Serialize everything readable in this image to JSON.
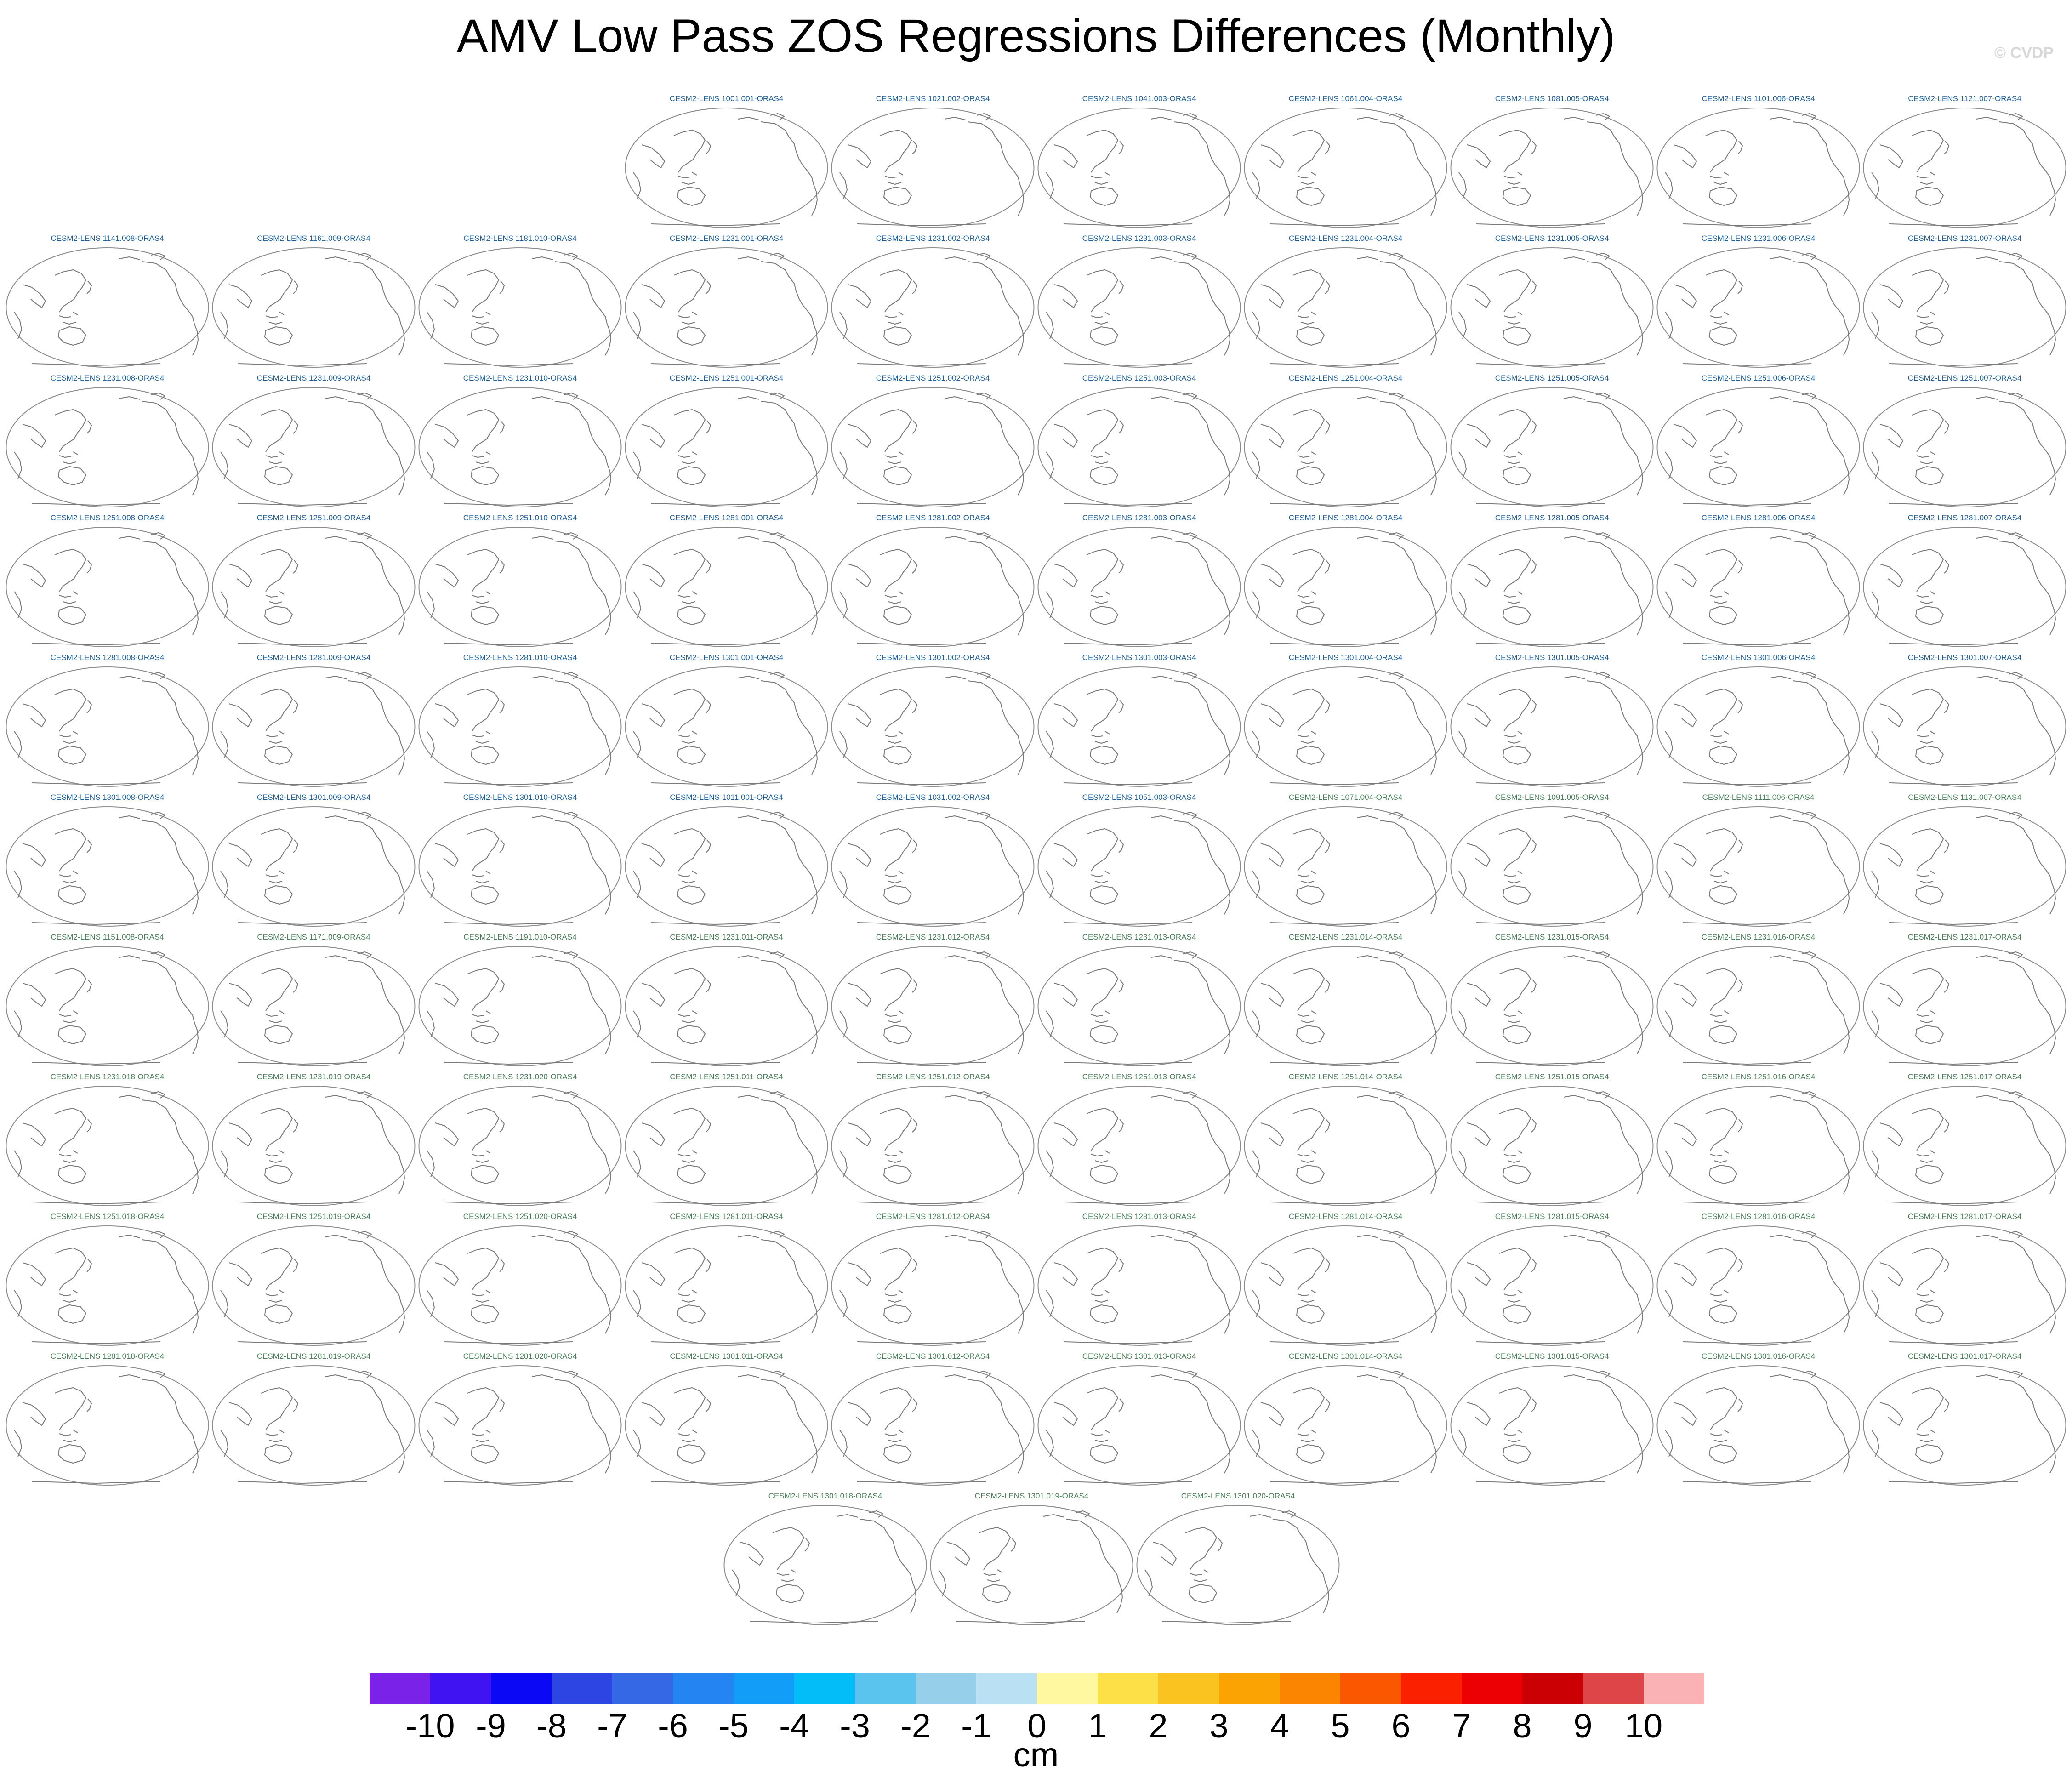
{
  "chart_data": {
    "type": "map_panel_grid",
    "title": "AMV Low Pass ZOS Regressions Differences (Monthly)",
    "watermark": "© CVDP",
    "projection": "Robinson (Pacific-centered)",
    "panel_rows": [
      [
        "CESM2-LENS 1001.001-ORAS4",
        "CESM2-LENS 1021.002-ORAS4",
        "CESM2-LENS 1041.003-ORAS4",
        "CESM2-LENS 1061.004-ORAS4",
        "CESM2-LENS 1081.005-ORAS4",
        "CESM2-LENS 1101.006-ORAS4",
        "CESM2-LENS 1121.007-ORAS4"
      ],
      [
        "CESM2-LENS 1141.008-ORAS4",
        "CESM2-LENS 1161.009-ORAS4",
        "CESM2-LENS 1181.010-ORAS4",
        "CESM2-LENS 1231.001-ORAS4",
        "CESM2-LENS 1231.002-ORAS4",
        "CESM2-LENS 1231.003-ORAS4",
        "CESM2-LENS 1231.004-ORAS4",
        "CESM2-LENS 1231.005-ORAS4",
        "CESM2-LENS 1231.006-ORAS4",
        "CESM2-LENS 1231.007-ORAS4"
      ],
      [
        "CESM2-LENS 1231.008-ORAS4",
        "CESM2-LENS 1231.009-ORAS4",
        "CESM2-LENS 1231.010-ORAS4",
        "CESM2-LENS 1251.001-ORAS4",
        "CESM2-LENS 1251.002-ORAS4",
        "CESM2-LENS 1251.003-ORAS4",
        "CESM2-LENS 1251.004-ORAS4",
        "CESM2-LENS 1251.005-ORAS4",
        "CESM2-LENS 1251.006-ORAS4",
        "CESM2-LENS 1251.007-ORAS4"
      ],
      [
        "CESM2-LENS 1251.008-ORAS4",
        "CESM2-LENS 1251.009-ORAS4",
        "CESM2-LENS 1251.010-ORAS4",
        "CESM2-LENS 1281.001-ORAS4",
        "CESM2-LENS 1281.002-ORAS4",
        "CESM2-LENS 1281.003-ORAS4",
        "CESM2-LENS 1281.004-ORAS4",
        "CESM2-LENS 1281.005-ORAS4",
        "CESM2-LENS 1281.006-ORAS4",
        "CESM2-LENS 1281.007-ORAS4"
      ],
      [
        "CESM2-LENS 1281.008-ORAS4",
        "CESM2-LENS 1281.009-ORAS4",
        "CESM2-LENS 1281.010-ORAS4",
        "CESM2-LENS 1301.001-ORAS4",
        "CESM2-LENS 1301.002-ORAS4",
        "CESM2-LENS 1301.003-ORAS4",
        "CESM2-LENS 1301.004-ORAS4",
        "CESM2-LENS 1301.005-ORAS4",
        "CESM2-LENS 1301.006-ORAS4",
        "CESM2-LENS 1301.007-ORAS4"
      ],
      [
        "CESM2-LENS 1301.008-ORAS4",
        "CESM2-LENS 1301.009-ORAS4",
        "CESM2-LENS 1301.010-ORAS4",
        "CESM2-LENS 1011.001-ORAS4",
        "CESM2-LENS 1031.002-ORAS4",
        "CESM2-LENS 1051.003-ORAS4",
        "CESM2-LENS 1071.004-ORAS4",
        "CESM2-LENS 1091.005-ORAS4",
        "CESM2-LENS 1111.006-ORAS4",
        "CESM2-LENS 1131.007-ORAS4"
      ],
      [
        "CESM2-LENS 1151.008-ORAS4",
        "CESM2-LENS 1171.009-ORAS4",
        "CESM2-LENS 1191.010-ORAS4",
        "CESM2-LENS 1231.011-ORAS4",
        "CESM2-LENS 1231.012-ORAS4",
        "CESM2-LENS 1231.013-ORAS4",
        "CESM2-LENS 1231.014-ORAS4",
        "CESM2-LENS 1231.015-ORAS4",
        "CESM2-LENS 1231.016-ORAS4",
        "CESM2-LENS 1231.017-ORAS4"
      ],
      [
        "CESM2-LENS 1231.018-ORAS4",
        "CESM2-LENS 1231.019-ORAS4",
        "CESM2-LENS 1231.020-ORAS4",
        "CESM2-LENS 1251.011-ORAS4",
        "CESM2-LENS 1251.012-ORAS4",
        "CESM2-LENS 1251.013-ORAS4",
        "CESM2-LENS 1251.014-ORAS4",
        "CESM2-LENS 1251.015-ORAS4",
        "CESM2-LENS 1251.016-ORAS4",
        "CESM2-LENS 1251.017-ORAS4"
      ],
      [
        "CESM2-LENS 1251.018-ORAS4",
        "CESM2-LENS 1251.019-ORAS4",
        "CESM2-LENS 1251.020-ORAS4",
        "CESM2-LENS 1281.011-ORAS4",
        "CESM2-LENS 1281.012-ORAS4",
        "CESM2-LENS 1281.013-ORAS4",
        "CESM2-LENS 1281.014-ORAS4",
        "CESM2-LENS 1281.015-ORAS4",
        "CESM2-LENS 1281.016-ORAS4",
        "CESM2-LENS 1281.017-ORAS4"
      ],
      [
        "CESM2-LENS 1281.018-ORAS4",
        "CESM2-LENS 1281.019-ORAS4",
        "CESM2-LENS 1281.020-ORAS4",
        "CESM2-LENS 1301.011-ORAS4",
        "CESM2-LENS 1301.012-ORAS4",
        "CESM2-LENS 1301.013-ORAS4",
        "CESM2-LENS 1301.014-ORAS4",
        "CESM2-LENS 1301.015-ORAS4",
        "CESM2-LENS 1301.016-ORAS4",
        "CESM2-LENS 1301.017-ORAS4"
      ],
      [
        "CESM2-LENS 1301.018-ORAS4",
        "CESM2-LENS 1301.019-ORAS4",
        "CESM2-LENS 1301.020-ORAS4"
      ]
    ],
    "panel_title_group_split": 53,
    "colorbar": {
      "unit": "cm",
      "tick_labels": [
        "-10",
        "-9",
        "-8",
        "-7",
        "-6",
        "-5",
        "-4",
        "-3",
        "-2",
        "-1",
        "0",
        "1",
        "2",
        "3",
        "4",
        "5",
        "6",
        "7",
        "8",
        "9",
        "10"
      ],
      "colors": [
        "#7b22e8",
        "#3f13f2",
        "#0b08f5",
        "#2c45e3",
        "#3568e4",
        "#2484f2",
        "#129ef8",
        "#02bdf7",
        "#5ac4ef",
        "#95cfea",
        "#b9e0f3",
        "#fff8a0",
        "#fde048",
        "#fbc320",
        "#faa302",
        "#fb8400",
        "#fb5600",
        "#fb2100",
        "#ed0004",
        "#cb0004",
        "#dd4548",
        "#fab2b4"
      ]
    },
    "panel_colors": {
      "group1_title": "#1f5f9a",
      "group2_title": "#4b7f5a",
      "map_outline": "#8c8c8c",
      "coast": "#7a7a7a"
    }
  }
}
